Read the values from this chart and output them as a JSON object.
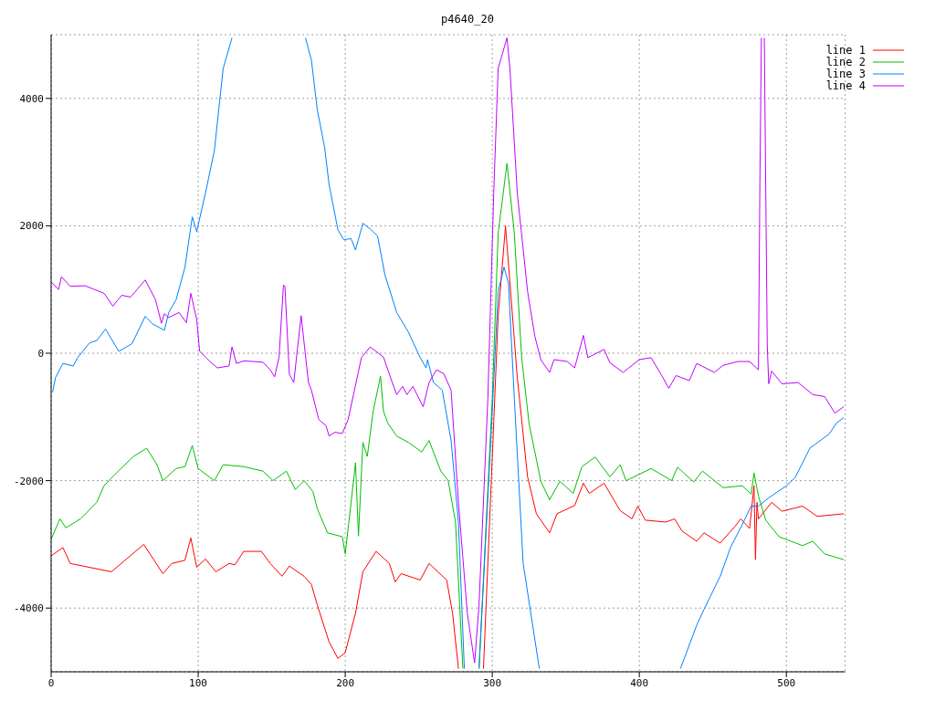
{
  "chart_data": {
    "type": "line",
    "title": "p4640_20",
    "xlim": [
      0,
      540
    ],
    "xticks": [
      0,
      100,
      200,
      300,
      400,
      500
    ],
    "ylim": [
      -5000,
      5000
    ],
    "yticks": [
      -4000,
      -2000,
      0,
      2000,
      4000
    ],
    "grid": true,
    "legend": "top right",
    "marker": "none",
    "line_style": "solid",
    "series": [
      {
        "name": "line 1",
        "color": "#ff0000",
        "x": [
          0,
          8,
          13,
          41,
          63,
          76,
          82,
          91,
          95,
          99,
          105,
          112,
          121,
          125,
          131,
          143,
          149,
          157,
          162,
          172,
          177,
          181,
          189,
          195,
          200,
          207,
          212,
          221,
          230,
          234,
          238,
          251,
          257,
          269,
          273,
          277,
          285,
          294,
          304,
          309,
          317,
          324,
          330,
          339,
          344,
          356,
          362,
          366,
          376,
          387,
          395,
          399,
          404,
          418,
          424,
          429,
          439,
          444,
          455,
          465,
          469,
          475,
          478,
          479,
          480,
          481,
          490,
          497,
          511,
          521,
          539
        ],
        "values": [
          -3180,
          -3050,
          -3300,
          -3430,
          -3000,
          -3460,
          -3300,
          -3250,
          -2900,
          -3360,
          -3230,
          -3430,
          -3300,
          -3320,
          -3110,
          -3110,
          -3300,
          -3500,
          -3340,
          -3500,
          -3630,
          -3950,
          -4530,
          -4790,
          -4700,
          -4080,
          -3430,
          -3110,
          -3300,
          -3590,
          -3460,
          -3560,
          -3300,
          -3560,
          -4080,
          -4950,
          null,
          -4950,
          580,
          2000,
          -380,
          -1940,
          -2520,
          -2820,
          -2520,
          -2390,
          -2040,
          -2200,
          -2040,
          -2470,
          -2600,
          -2400,
          -2620,
          -2650,
          -2600,
          -2790,
          -2950,
          -2820,
          -2980,
          -2720,
          -2600,
          -2750,
          -2080,
          -3240,
          -2340,
          -2600,
          -2340,
          -2480,
          -2400,
          -2560,
          -2520
        ]
      },
      {
        "name": "line 2",
        "color": "#00c000",
        "x": [
          0,
          6,
          10,
          20,
          31,
          36,
          43,
          56,
          65,
          72,
          76,
          85,
          91,
          96,
          100,
          111,
          117,
          131,
          144,
          151,
          160,
          166,
          172,
          178,
          181,
          188,
          193,
          198,
          200,
          204,
          207,
          209,
          212,
          215,
          219,
          224,
          226,
          229,
          235,
          243,
          252,
          257,
          265,
          270,
          275,
          280,
          285,
          291,
          300,
          304,
          310,
          315,
          320,
          325,
          333,
          339,
          346,
          355,
          361,
          370,
          380,
          387,
          391,
          408,
          422,
          426,
          437,
          443,
          457,
          470,
          476,
          478,
          481,
          486,
          495,
          511,
          518,
          526,
          539
        ],
        "values": [
          -2920,
          -2600,
          -2740,
          -2600,
          -2340,
          -2080,
          -1910,
          -1620,
          -1490,
          -1750,
          -2000,
          -1810,
          -1780,
          -1450,
          -1810,
          -2000,
          -1750,
          -1780,
          -1850,
          -2000,
          -1850,
          -2140,
          -2000,
          -2170,
          -2440,
          -2820,
          -2850,
          -2880,
          -3150,
          -2340,
          -1720,
          -2870,
          -1400,
          -1620,
          -910,
          -360,
          -910,
          -1100,
          -1300,
          -1400,
          -1550,
          -1370,
          -1850,
          -2000,
          -2650,
          -4950,
          null,
          -4950,
          -710,
          1880,
          2980,
          1880,
          -70,
          -1100,
          -2010,
          -2300,
          -2010,
          -2200,
          -1780,
          -1630,
          -1940,
          -1750,
          -2000,
          -1810,
          -2000,
          -1790,
          -2020,
          -1850,
          -2110,
          -2080,
          -2210,
          -1880,
          -2240,
          -2620,
          -2880,
          -3020,
          -2950,
          -3150,
          -3240
        ]
      },
      {
        "name": "line 3",
        "color": "#0080ff",
        "x": [
          1,
          3,
          8,
          15,
          18,
          26,
          31,
          37,
          46,
          55,
          64,
          69,
          77,
          80,
          85,
          91,
          96,
          99,
          105,
          111,
          117,
          123,
          150,
          173,
          177,
          181,
          186,
          189,
          195,
          199,
          204,
          207,
          212,
          217,
          222,
          227,
          235,
          243,
          251,
          255,
          256,
          260,
          266,
          272,
          277,
          281,
          286,
          291,
          299,
          304,
          308,
          311,
          315,
          321,
          332,
          380,
          428,
          439,
          444,
          455,
          462,
          470,
          476,
          481,
          488,
          500,
          506,
          516,
          529,
          534,
          539
        ],
        "values": [
          -610,
          -380,
          -160,
          -200,
          -70,
          160,
          200,
          380,
          30,
          150,
          580,
          460,
          360,
          640,
          840,
          1350,
          2140,
          1910,
          2520,
          3180,
          4470,
          4950,
          null,
          4950,
          4600,
          3820,
          3230,
          2650,
          1940,
          1780,
          1800,
          1620,
          2040,
          1950,
          1840,
          1230,
          640,
          330,
          -70,
          -230,
          -100,
          -460,
          -580,
          -1370,
          -2650,
          -4950,
          null,
          -4950,
          -1370,
          970,
          1350,
          1100,
          -710,
          -3300,
          -4950,
          null,
          -4950,
          -4270,
          -4020,
          -3500,
          -3050,
          -2690,
          -2400,
          -2400,
          -2270,
          -2080,
          -1950,
          -1490,
          -1270,
          -1100,
          -1010
        ]
      },
      {
        "name": "line 4",
        "color": "#c000ff",
        "x": [
          0,
          5,
          7,
          13,
          23,
          36,
          42,
          48,
          54,
          64,
          71,
          75,
          77,
          80,
          87,
          92,
          95,
          99,
          101,
          108,
          113,
          121,
          123,
          126,
          131,
          144,
          149,
          152,
          155,
          158,
          159,
          162,
          165,
          170,
          175,
          177,
          182,
          187,
          189,
          193,
          198,
          202,
          211,
          217,
          226,
          232,
          235,
          239,
          242,
          246,
          253,
          257,
          262,
          267,
          272,
          277,
          283,
          288,
          291,
          297,
          301,
          304,
          310,
          312,
          317,
          324,
          329,
          333,
          339,
          342,
          351,
          356,
          362,
          365,
          376,
          380,
          389,
          400,
          408,
          416,
          420,
          425,
          434,
          439,
          451,
          457,
          467,
          475,
          481,
          482,
          483,
          484,
          485,
          486,
          487,
          488,
          490,
          497,
          508,
          518,
          526,
          533,
          539
        ],
        "values": [
          1120,
          1000,
          1200,
          1050,
          1060,
          940,
          740,
          910,
          880,
          1150,
          840,
          470,
          620,
          560,
          640,
          480,
          940,
          530,
          30,
          -130,
          -230,
          -200,
          100,
          -160,
          -120,
          -140,
          -260,
          -370,
          -60,
          1070,
          1050,
          -330,
          -460,
          590,
          -460,
          -580,
          -1040,
          -1140,
          -1300,
          -1240,
          -1260,
          -1040,
          -70,
          100,
          -60,
          -460,
          -650,
          -520,
          -650,
          -520,
          -840,
          -460,
          -260,
          -320,
          -580,
          -2340,
          -4080,
          -4860,
          -3950,
          -710,
          2520,
          4470,
          4950,
          4470,
          2520,
          970,
          260,
          -100,
          -300,
          -100,
          -130,
          -230,
          280,
          -70,
          60,
          -150,
          -300,
          -100,
          -70,
          -380,
          -550,
          -350,
          -430,
          -160,
          -300,
          -190,
          -130,
          -130,
          -260,
          2720,
          4950,
          null,
          4950,
          2520,
          130,
          -480,
          -280,
          -480,
          -460,
          -650,
          -680,
          -940,
          -840
        ]
      }
    ]
  }
}
